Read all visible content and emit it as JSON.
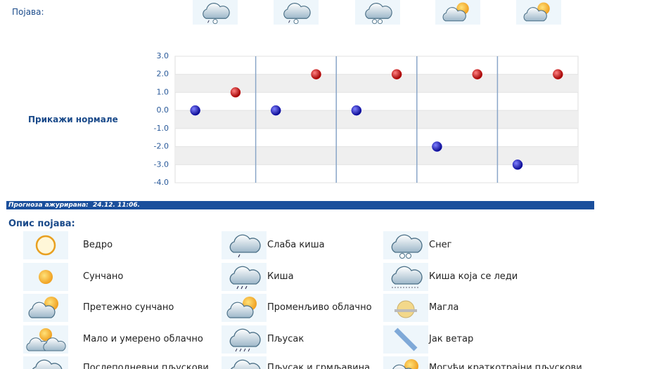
{
  "header": {
    "label": "Појава:"
  },
  "link": "Прикажи нормале",
  "chart_data": {
    "type": "scatter",
    "series": [
      {
        "color": "#1010c0",
        "values": [
          0,
          0,
          0,
          -2,
          -3
        ]
      },
      {
        "color": "#d01010",
        "values": [
          1,
          2,
          2,
          2,
          2
        ]
      }
    ],
    "ylim": [
      -4,
      3
    ],
    "yticks": [
      {
        "value": 3,
        "label": "3.0"
      },
      {
        "value": 2,
        "label": "2.0"
      },
      {
        "value": 1,
        "label": "1.0"
      },
      {
        "value": 0,
        "label": "0.0"
      },
      {
        "value": -1,
        "label": "-1.0"
      },
      {
        "value": -2,
        "label": "-2.0"
      },
      {
        "value": -3,
        "label": "-3.0"
      },
      {
        "value": -4,
        "label": "-4.0"
      }
    ],
    "grid": true
  },
  "update_bar": "Прогноза ажурирана:  24.12. 11:06.",
  "legend": {
    "title": "Опис појава:",
    "columns": [
      [
        "Ведро",
        "Сунчано",
        "Претежно сунчано",
        "Мало и умерено облачно",
        "Послеподневни пљускови"
      ],
      [
        "Слаба киша",
        "Киша",
        "Променљиво облачно",
        "Пљусак",
        "Пљусак и грмљавина"
      ],
      [
        "Снег",
        "Киша која се леди",
        "Магла",
        "Јак ветар",
        "Могући краткотрајни пљускови"
      ]
    ]
  }
}
